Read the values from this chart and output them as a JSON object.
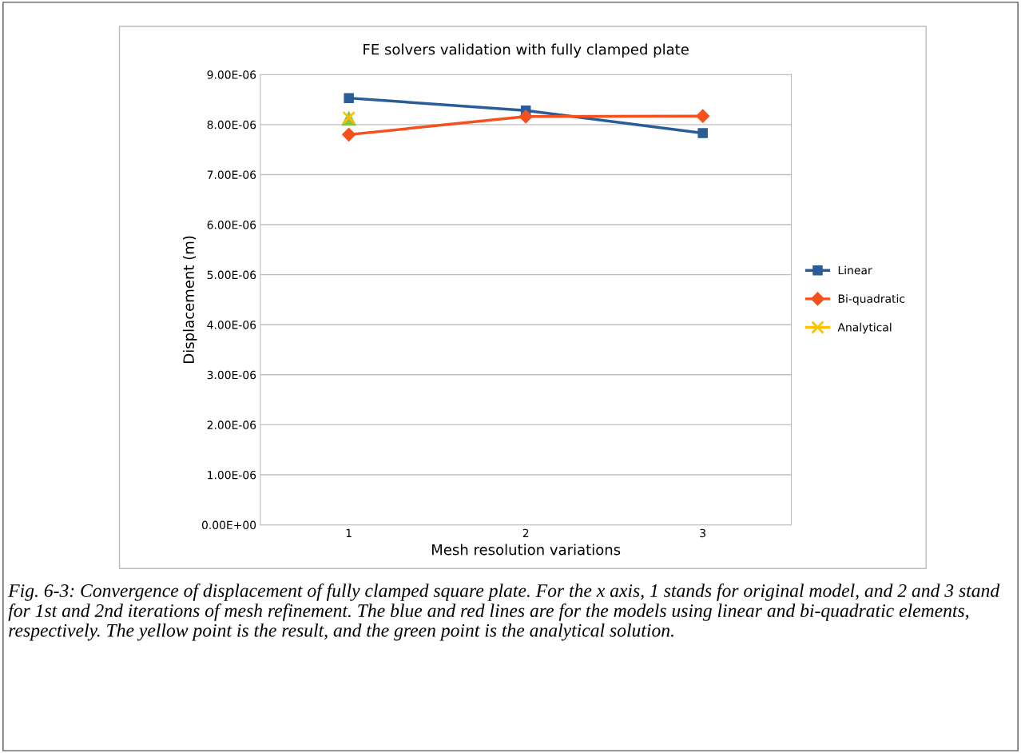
{
  "chart_data": {
    "type": "line",
    "title": "FE solvers validation with fully clamped plate",
    "xlabel": "Mesh resolution variations",
    "ylabel": "Displacement (m)",
    "categories": [
      "1",
      "2",
      "3"
    ],
    "series": [
      {
        "name": "Linear",
        "color": "#2a5d97",
        "marker": "square",
        "values": [
          8.53e-06,
          8.28e-06,
          7.83e-06
        ]
      },
      {
        "name": "Bi-quadratic",
        "color": "#f4511e",
        "marker": "diamond",
        "values": [
          7.8e-06,
          8.16e-06,
          8.17e-06
        ]
      },
      {
        "name": null,
        "color": "#8bc34a",
        "marker": "triangle",
        "values": [
          8.12e-06,
          null,
          null
        ]
      },
      {
        "name": "Analytical",
        "color": "#ffc000",
        "marker": "cross",
        "values": [
          8.14e-06,
          null,
          null
        ]
      }
    ],
    "ylim": [
      0,
      9e-06
    ],
    "yticks": [
      {
        "value": 0,
        "label": "0.00E+00"
      },
      {
        "value": 1e-06,
        "label": "1.00E-06"
      },
      {
        "value": 2e-06,
        "label": "2.00E-06"
      },
      {
        "value": 3e-06,
        "label": "3.00E-06"
      },
      {
        "value": 4e-06,
        "label": "4.00E-06"
      },
      {
        "value": 5e-06,
        "label": "5.00E-06"
      },
      {
        "value": 6e-06,
        "label": "6.00E-06"
      },
      {
        "value": 7e-06,
        "label": "7.00E-06"
      },
      {
        "value": 8e-06,
        "label": "8.00E-06"
      },
      {
        "value": 9e-06,
        "label": "9.00E-06"
      }
    ],
    "grid": "y",
    "legend": "right",
    "line_style": "solid",
    "annotations": [
      "Fig. 6-3: Convergence of displacement of fully clamped square plate. For the x axis, 1 stands for original model, and 2 and 3 stand for 1st and 2nd iterations of mesh refinement. The blue and red lines are for the models using linear and bi-quadratic elements, respectively. The yellow point is the result, and the green point is the analytical solution."
    ]
  }
}
